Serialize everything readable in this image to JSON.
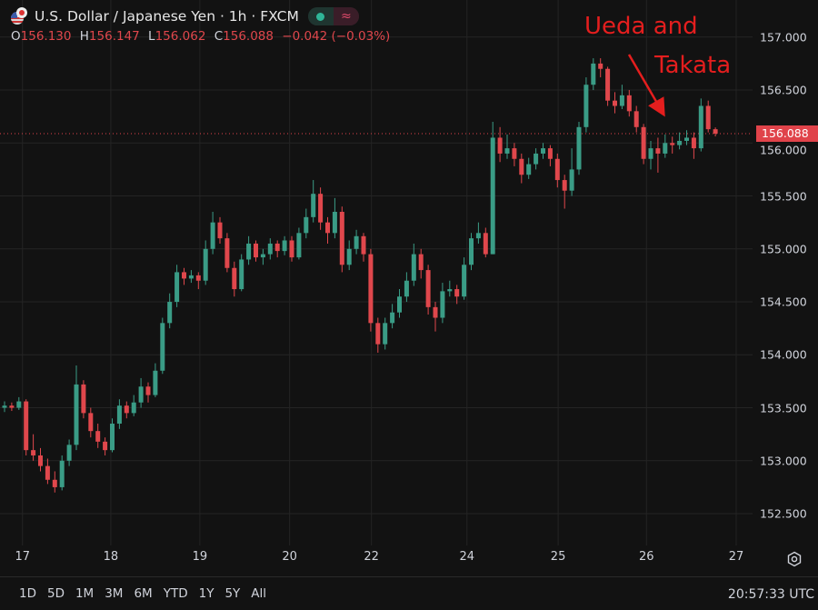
{
  "header": {
    "symbol_title": "U.S. Dollar / Japanese Yen · 1h · FXCM",
    "icons": [
      "us-japan-flag-icon",
      "market-open-dot-icon",
      "wave-icon"
    ],
    "ohlc": {
      "o_label": "O",
      "o": "156.130",
      "h_label": "H",
      "h": "156.147",
      "l_label": "L",
      "l": "156.062",
      "c_label": "C",
      "c": "156.088",
      "change": "−0.042 (−0.03%)"
    }
  },
  "annotation": {
    "line1": "Ueda and",
    "line2": "Takata",
    "color": "#e41e1e"
  },
  "colors": {
    "background": "#121212",
    "grid": "#242424",
    "up": "#3a9c86",
    "down": "#e0474c",
    "last_price": "#e0434a"
  },
  "chart_data": {
    "type": "candlestick",
    "title": "U.S. Dollar / Japanese Yen · 1h · FXCM",
    "interval": "1h",
    "ylim": [
      152.2,
      157.35
    ],
    "y_ticks": [
      "157.000",
      "156.500",
      "156.000",
      "155.500",
      "155.000",
      "154.500",
      "154.000",
      "153.500",
      "153.000",
      "152.500"
    ],
    "x_ticks": [
      {
        "label": "17",
        "bar": 2.5
      },
      {
        "label": "18",
        "bar": 14.8
      },
      {
        "label": "19",
        "bar": 27.2
      },
      {
        "label": "20",
        "bar": 39.7
      },
      {
        "label": "22",
        "bar": 51.1
      },
      {
        "label": "24",
        "bar": 64.4
      },
      {
        "label": "25",
        "bar": 77.1
      },
      {
        "label": "26",
        "bar": 89.4
      },
      {
        "label": "27",
        "bar": 101.9
      }
    ],
    "last_price": "156.088",
    "grid": true,
    "ohlc": [
      [
        153.5,
        153.56,
        153.46,
        153.52
      ],
      [
        153.52,
        153.55,
        153.47,
        153.5
      ],
      [
        153.5,
        153.6,
        153.48,
        153.56
      ],
      [
        153.56,
        153.58,
        153.05,
        153.1
      ],
      [
        153.1,
        153.25,
        153.0,
        153.05
      ],
      [
        153.05,
        153.12,
        152.9,
        152.95
      ],
      [
        152.95,
        153.02,
        152.78,
        152.82
      ],
      [
        152.82,
        152.9,
        152.7,
        152.75
      ],
      [
        152.75,
        153.05,
        152.72,
        153.0
      ],
      [
        153.0,
        153.2,
        152.95,
        153.15
      ],
      [
        153.15,
        153.9,
        153.1,
        153.72
      ],
      [
        153.72,
        153.76,
        153.4,
        153.45
      ],
      [
        153.45,
        153.5,
        153.22,
        153.28
      ],
      [
        153.28,
        153.35,
        153.12,
        153.18
      ],
      [
        153.18,
        153.22,
        153.05,
        153.1
      ],
      [
        153.1,
        153.4,
        153.08,
        153.35
      ],
      [
        153.35,
        153.58,
        153.3,
        153.52
      ],
      [
        153.52,
        153.56,
        153.4,
        153.45
      ],
      [
        153.45,
        153.62,
        153.42,
        153.55
      ],
      [
        153.55,
        153.78,
        153.5,
        153.7
      ],
      [
        153.7,
        153.74,
        153.55,
        153.62
      ],
      [
        153.62,
        153.92,
        153.6,
        153.85
      ],
      [
        153.85,
        154.35,
        153.82,
        154.3
      ],
      [
        154.3,
        154.58,
        154.25,
        154.5
      ],
      [
        154.5,
        154.85,
        154.45,
        154.78
      ],
      [
        154.78,
        154.82,
        154.66,
        154.72
      ],
      [
        154.72,
        154.8,
        154.68,
        154.75
      ],
      [
        154.75,
        154.78,
        154.62,
        154.7
      ],
      [
        154.7,
        155.08,
        154.66,
        155.0
      ],
      [
        155.0,
        155.35,
        154.95,
        155.25
      ],
      [
        155.25,
        155.3,
        155.05,
        155.1
      ],
      [
        155.1,
        155.15,
        154.78,
        154.82
      ],
      [
        154.82,
        154.88,
        154.55,
        154.62
      ],
      [
        154.62,
        154.95,
        154.6,
        154.9
      ],
      [
        154.9,
        155.12,
        154.85,
        155.05
      ],
      [
        155.05,
        155.08,
        154.88,
        154.92
      ],
      [
        154.92,
        155.0,
        154.85,
        154.95
      ],
      [
        154.95,
        155.1,
        154.9,
        155.05
      ],
      [
        155.05,
        155.08,
        154.92,
        154.98
      ],
      [
        154.98,
        155.12,
        154.94,
        155.08
      ],
      [
        155.08,
        155.12,
        154.88,
        154.92
      ],
      [
        154.92,
        155.2,
        154.9,
        155.15
      ],
      [
        155.15,
        155.38,
        155.1,
        155.3
      ],
      [
        155.3,
        155.65,
        155.25,
        155.52
      ],
      [
        155.52,
        155.58,
        155.18,
        155.25
      ],
      [
        155.25,
        155.3,
        155.05,
        155.15
      ],
      [
        155.15,
        155.48,
        155.1,
        155.35
      ],
      [
        155.35,
        155.4,
        154.78,
        154.85
      ],
      [
        154.85,
        155.08,
        154.8,
        155.0
      ],
      [
        155.0,
        155.18,
        154.95,
        155.12
      ],
      [
        155.12,
        155.15,
        154.88,
        154.95
      ],
      [
        154.95,
        155.0,
        154.22,
        154.3
      ],
      [
        154.3,
        154.35,
        154.02,
        154.1
      ],
      [
        154.1,
        154.35,
        154.05,
        154.3
      ],
      [
        154.3,
        154.48,
        154.25,
        154.4
      ],
      [
        154.4,
        154.62,
        154.35,
        154.55
      ],
      [
        154.55,
        154.78,
        154.5,
        154.7
      ],
      [
        154.7,
        155.05,
        154.65,
        154.95
      ],
      [
        154.95,
        155.0,
        154.72,
        154.8
      ],
      [
        154.8,
        154.85,
        154.38,
        154.45
      ],
      [
        154.45,
        154.5,
        154.22,
        154.35
      ],
      [
        154.35,
        154.68,
        154.3,
        154.6
      ],
      [
        154.6,
        154.7,
        154.55,
        154.62
      ],
      [
        154.62,
        154.66,
        154.48,
        154.55
      ],
      [
        154.55,
        154.92,
        154.52,
        154.85
      ],
      [
        154.85,
        155.15,
        154.8,
        155.1
      ],
      [
        155.1,
        155.25,
        155.05,
        155.15
      ],
      [
        155.15,
        155.2,
        154.92,
        154.95
      ],
      [
        154.95,
        156.2,
        154.95,
        156.05
      ],
      [
        156.05,
        156.15,
        155.82,
        155.9
      ],
      [
        155.9,
        156.08,
        155.85,
        155.95
      ],
      [
        155.95,
        156.0,
        155.78,
        155.85
      ],
      [
        155.85,
        155.9,
        155.62,
        155.7
      ],
      [
        155.7,
        155.86,
        155.66,
        155.8
      ],
      [
        155.8,
        155.95,
        155.75,
        155.9
      ],
      [
        155.9,
        156.0,
        155.85,
        155.95
      ],
      [
        155.95,
        155.98,
        155.78,
        155.85
      ],
      [
        155.85,
        155.9,
        155.58,
        155.65
      ],
      [
        155.65,
        155.7,
        155.38,
        155.55
      ],
      [
        155.55,
        155.95,
        155.5,
        155.75
      ],
      [
        155.75,
        156.2,
        155.7,
        156.15
      ],
      [
        156.15,
        156.62,
        156.1,
        156.55
      ],
      [
        156.55,
        156.8,
        156.5,
        156.75
      ],
      [
        156.75,
        156.8,
        156.62,
        156.7
      ],
      [
        156.7,
        156.72,
        156.35,
        156.4
      ],
      [
        156.4,
        156.48,
        156.28,
        156.35
      ],
      [
        156.35,
        156.55,
        156.32,
        156.45
      ],
      [
        156.45,
        156.5,
        156.25,
        156.3
      ],
      [
        156.3,
        156.35,
        156.1,
        156.15
      ],
      [
        156.15,
        156.18,
        155.8,
        155.85
      ],
      [
        155.85,
        156.02,
        155.75,
        155.95
      ],
      [
        155.95,
        156.05,
        155.72,
        155.9
      ],
      [
        155.9,
        156.08,
        155.86,
        156.0
      ],
      [
        156.0,
        156.06,
        155.9,
        155.98
      ],
      [
        155.98,
        156.1,
        155.94,
        156.02
      ],
      [
        156.02,
        156.12,
        155.98,
        156.05
      ],
      [
        156.05,
        156.1,
        155.85,
        155.95
      ],
      [
        155.95,
        156.42,
        155.92,
        156.35
      ],
      [
        156.35,
        156.4,
        156.1,
        156.13
      ],
      [
        156.13,
        156.147,
        156.062,
        156.088
      ]
    ]
  },
  "time_ranges": [
    "1D",
    "5D",
    "1M",
    "3M",
    "6M",
    "YTD",
    "1Y",
    "5Y",
    "All"
  ],
  "clock": "20:57:33 UTC",
  "settings_icon": "gear-icon"
}
